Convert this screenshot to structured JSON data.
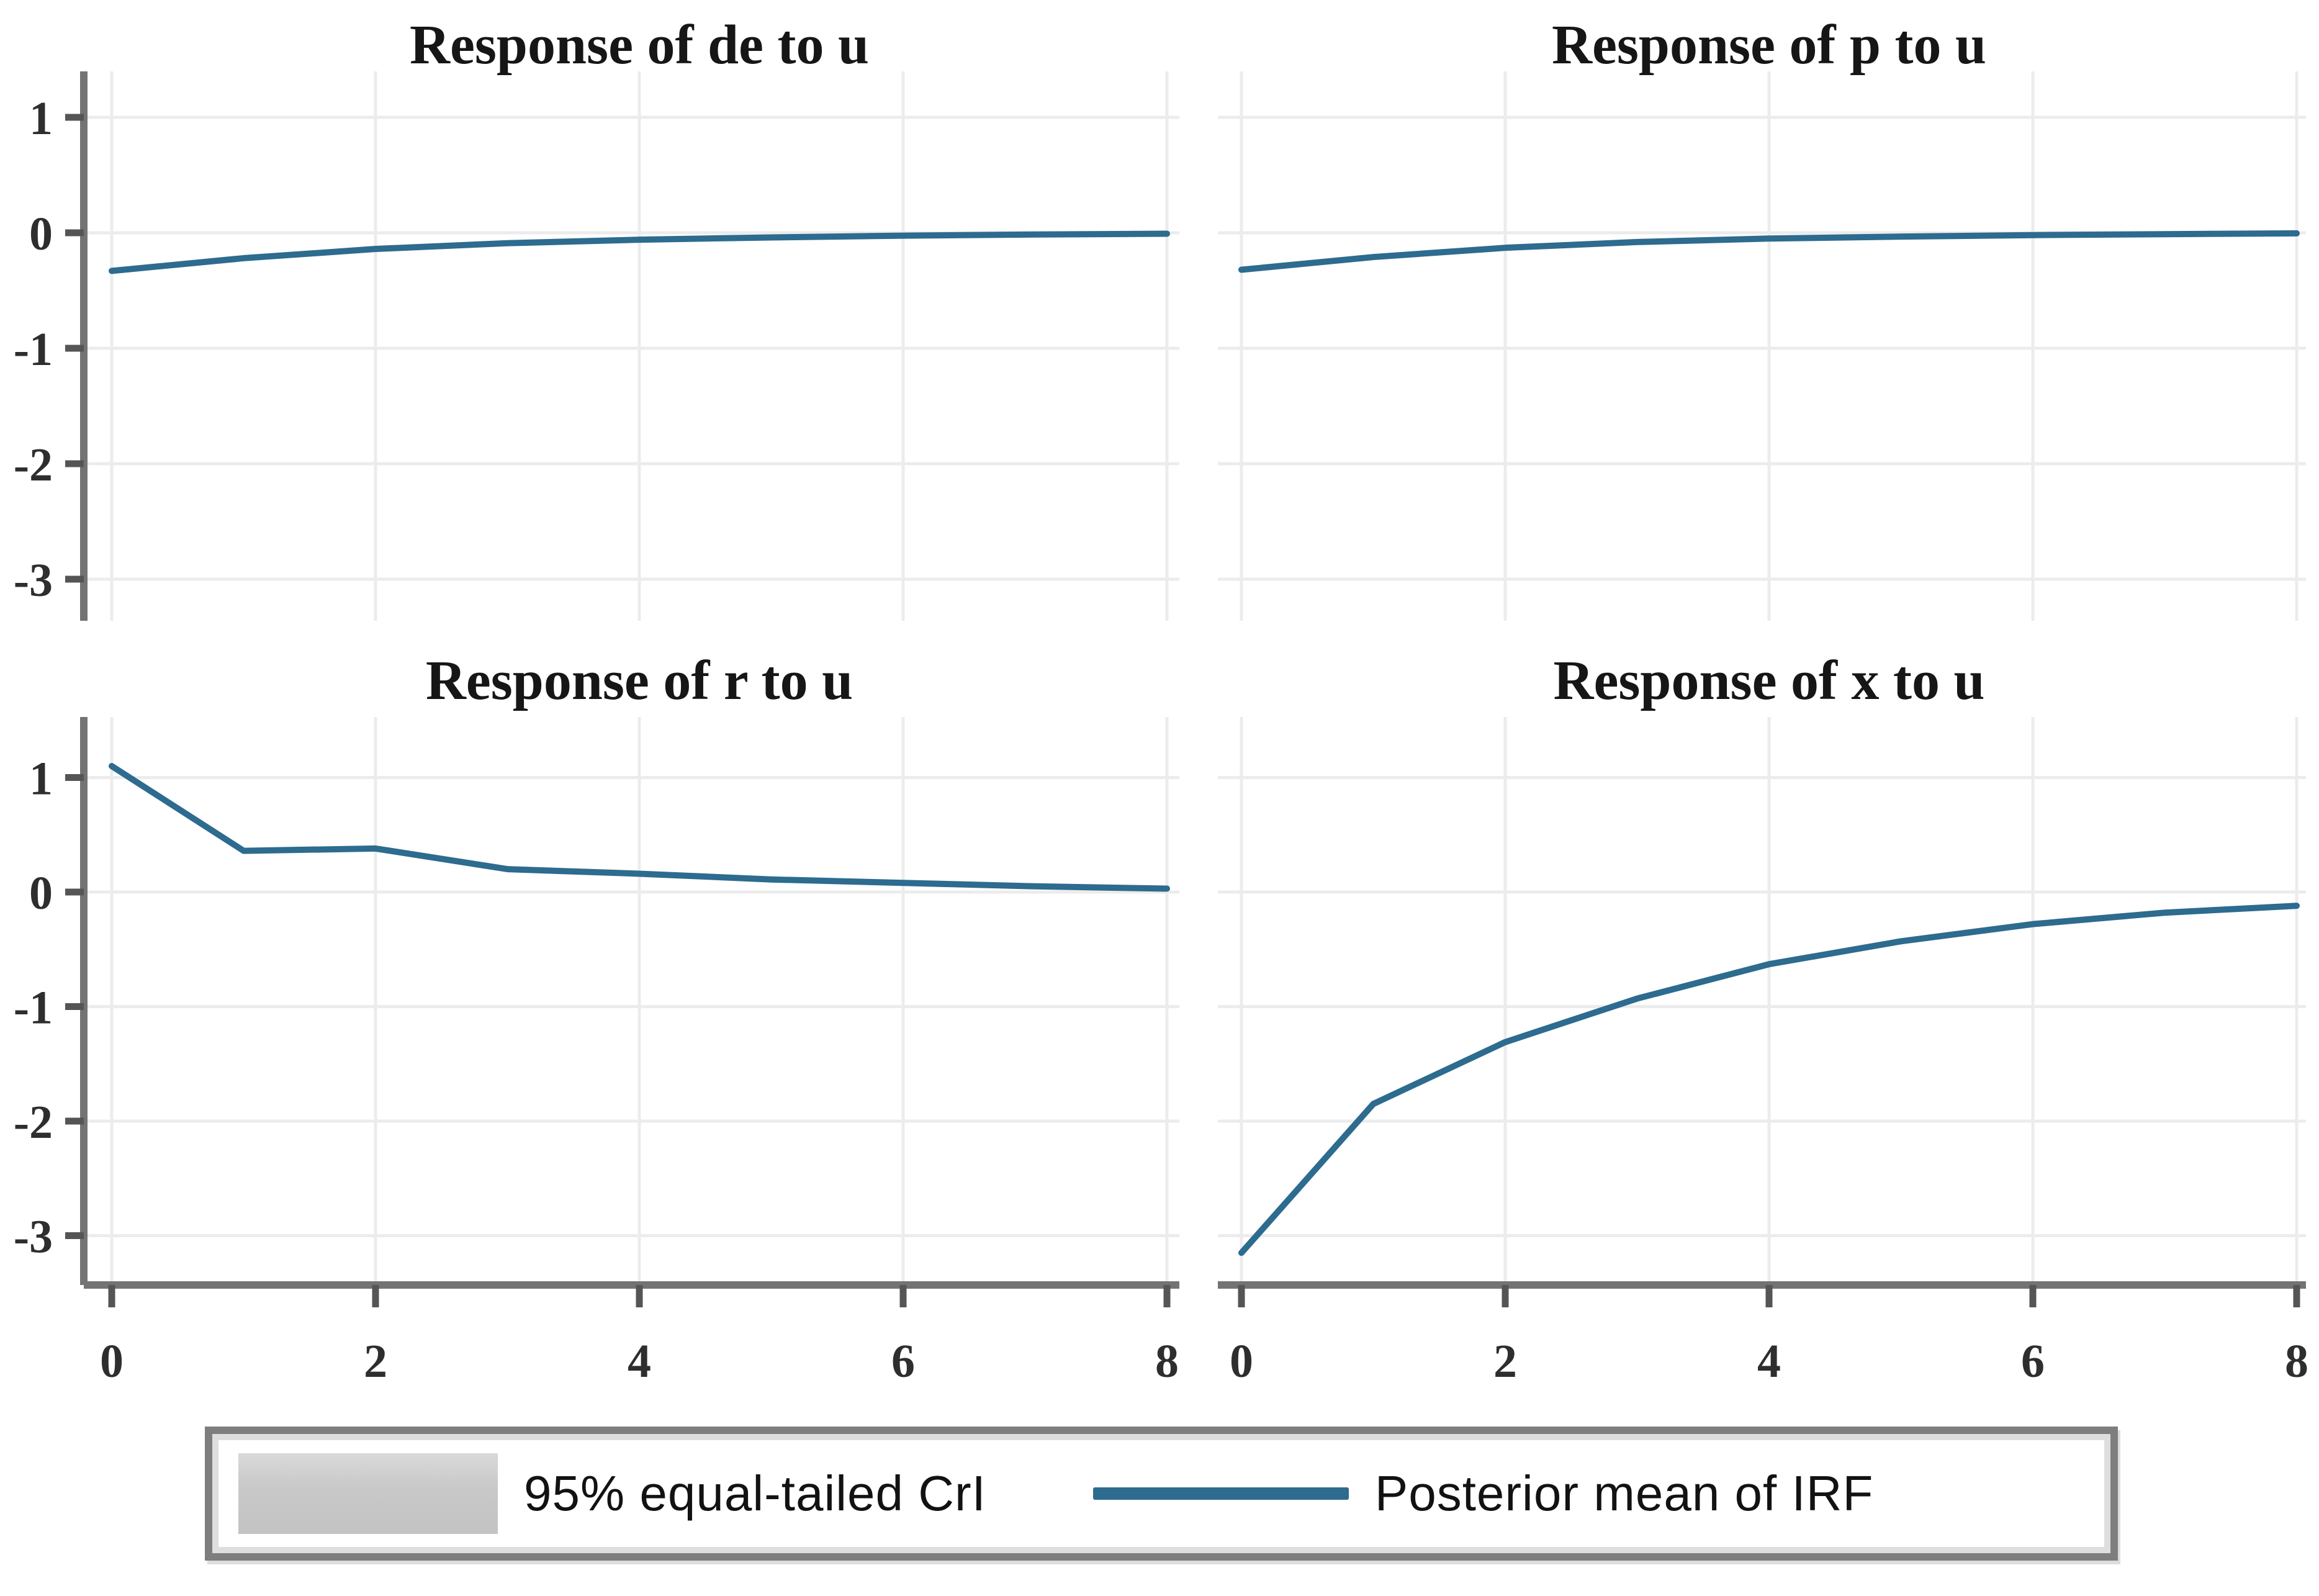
{
  "chart_data": {
    "type": "line",
    "layout": "2x2 panel grid of Bayesian impulse-response functions",
    "x": [
      0,
      1,
      2,
      3,
      4,
      5,
      6,
      7,
      8
    ],
    "x_ticks": [
      0,
      2,
      4,
      6,
      8
    ],
    "y_ticks": [
      1,
      0,
      -1,
      -2,
      -3
    ],
    "xlim": [
      0,
      8
    ],
    "ylim": [
      -3.4,
      1.4
    ],
    "grid": true,
    "legend_position": "bottom",
    "plots": [
      {
        "id": "de",
        "title": "Response of de to u",
        "values": [
          -0.33,
          -0.22,
          -0.14,
          -0.09,
          -0.06,
          -0.04,
          -0.025,
          -0.015,
          -0.008
        ]
      },
      {
        "id": "p",
        "title": "Response of p to u",
        "values": [
          -0.32,
          -0.21,
          -0.13,
          -0.08,
          -0.05,
          -0.033,
          -0.02,
          -0.012,
          -0.005
        ]
      },
      {
        "id": "r",
        "title": "Response of r to u",
        "values": [
          1.1,
          0.36,
          0.38,
          0.2,
          0.16,
          0.11,
          0.08,
          0.05,
          0.03
        ]
      },
      {
        "id": "x",
        "title": "Response of x to u",
        "values": [
          -3.15,
          -1.85,
          -1.31,
          -0.93,
          -0.63,
          -0.43,
          -0.28,
          -0.18,
          -0.12
        ]
      }
    ],
    "style": {
      "line_color": "#2d6b8f",
      "grid_color": "#ececec",
      "axis_color": "#737373",
      "tick_color": "#555555",
      "tick_label_color": "#2e2e2e",
      "title_color": "#161616",
      "background": "#ffffff"
    }
  },
  "legend": {
    "ci_label": "95% equal-tailed CrI",
    "mean_label": "Posterior mean of IRF",
    "swatch_color": "#c8c8c8",
    "line_color": "#2d6b8f",
    "border_color": "#7e7e7e"
  }
}
